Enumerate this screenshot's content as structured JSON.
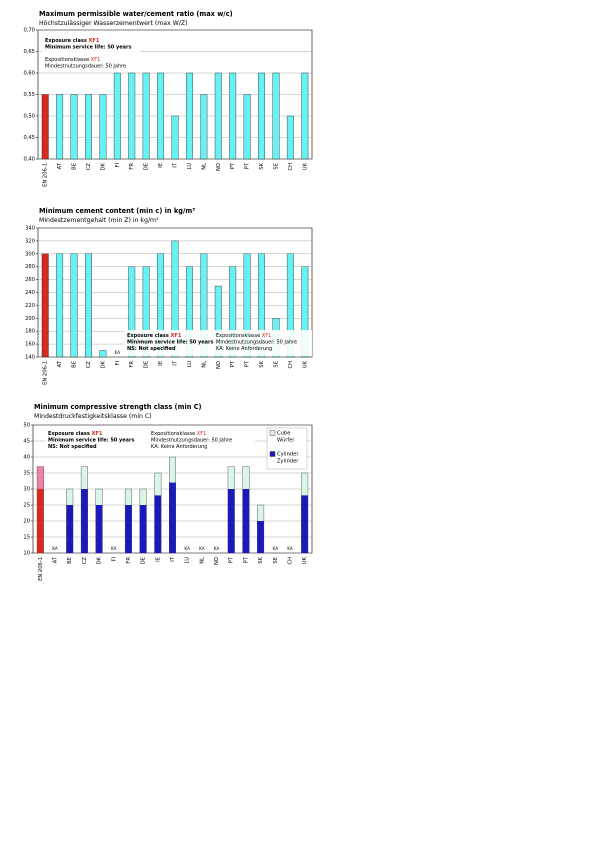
{
  "chart_data": [
    {
      "type": "bar",
      "title": "Maximum permissible water/cement ratio (max w/c)",
      "subtitle": "Höchstzulässiger Wasserzementwert (max W/Z)",
      "categories": [
        "EN 206-1",
        "AT",
        "BE",
        "CZ",
        "DK",
        "FI",
        "FR",
        "DE",
        "IE",
        "IT",
        "LU",
        "NL",
        "NO",
        "PT",
        "PT",
        "SK",
        "SE",
        "CH",
        "UK"
      ],
      "values": [
        0.55,
        0.55,
        0.55,
        0.55,
        0.55,
        0.6,
        0.6,
        0.6,
        0.6,
        0.5,
        0.6,
        0.55,
        0.6,
        0.6,
        0.55,
        0.6,
        0.6,
        0.5,
        0.6
      ],
      "color": "#66f2f2",
      "highlight_color": "#d42a1f",
      "highlight_index": 0,
      "ylim": [
        0.4,
        0.7
      ],
      "yticks": [
        {
          "value": 0.4,
          "label": "0,40"
        },
        {
          "value": 0.45,
          "label": "0,45"
        },
        {
          "value": 0.5,
          "label": "0,50"
        },
        {
          "value": 0.55,
          "label": "0,55"
        },
        {
          "value": 0.6,
          "label": "0,60"
        },
        {
          "value": 0.65,
          "label": "0,65"
        },
        {
          "value": 0.7,
          "label": "0,70"
        }
      ],
      "grid": true,
      "annotations": [
        {
          "lines": [
            {
              "text": "Exposure class",
              "highlight": "XF1"
            },
            {
              "text": "Minimum service life: 50 years"
            }
          ],
          "bold": true
        },
        {
          "lines": [
            {
              "text": "Expositionsklasse",
              "highlight": "XF1"
            },
            {
              "text": "Mindestnutzungsdauer: 50 Jahre"
            }
          ],
          "bold": false
        }
      ]
    },
    {
      "type": "bar",
      "title": "Minimum cement content (min c) in kg/m³",
      "subtitle": "Mindestzementgehalt (min Z) in kg/m³",
      "categories": [
        "EN 206-1",
        "AT",
        "BE",
        "CZ",
        "DK",
        "FI",
        "FR",
        "DE",
        "IE",
        "IT",
        "LU",
        "NL",
        "NO",
        "PT",
        "PT",
        "SK",
        "SE",
        "CH",
        "UK"
      ],
      "values": [
        300,
        300,
        300,
        300,
        150,
        null,
        280,
        280,
        300,
        320,
        280,
        300,
        250,
        280,
        300,
        300,
        200,
        300,
        280
      ],
      "value_labels": [
        null,
        null,
        null,
        null,
        null,
        "KA",
        null,
        null,
        null,
        null,
        null,
        null,
        null,
        null,
        null,
        null,
        null,
        null,
        null
      ],
      "color": "#66f2f2",
      "highlight_color": "#d42a1f",
      "highlight_index": 0,
      "ylim": [
        140,
        340
      ],
      "yticks": [
        140,
        160,
        180,
        200,
        220,
        240,
        260,
        280,
        300,
        320,
        340
      ],
      "grid": true,
      "annotations": [
        {
          "lines": [
            {
              "text": "Exposure class",
              "highlight": "XF1"
            },
            {
              "text": "Minimum service life: 50 years"
            },
            {
              "text": "NS: Not specified"
            }
          ],
          "bold": true
        },
        {
          "lines": [
            {
              "text": "Expositionsklasse",
              "highlight": "XF1"
            },
            {
              "text": "Mindestnutzungsdauer: 50 Jahre"
            },
            {
              "text": "KA: Keine Anforderung"
            }
          ],
          "bold": false
        }
      ]
    },
    {
      "type": "overlap_bar",
      "title": "Minimum compressive strength class (min C)",
      "subtitle": "Mindestdruckfestigkeitsklasse (min C)",
      "categories": [
        "EN 206-1",
        "AT",
        "BE",
        "CZ",
        "DK",
        "FI",
        "FR",
        "DE",
        "IE",
        "IT",
        "LU",
        "NL",
        "NO",
        "PT",
        "PT",
        "SK",
        "SE",
        "CH",
        "UK"
      ],
      "series": [
        {
          "name": "Cube",
          "name_de": "Würfel",
          "color": "#d8f5e6",
          "highlight_color": "#ef7fa6",
          "values": [
            37,
            null,
            30,
            37,
            30,
            null,
            30,
            30,
            35,
            40,
            null,
            null,
            null,
            37,
            37,
            25,
            null,
            null,
            35
          ]
        },
        {
          "name": "Cylinder",
          "name_de": "Zylinder",
          "color": "#1a1ab8",
          "highlight_color": "#d42a1f",
          "values": [
            30,
            null,
            25,
            30,
            25,
            null,
            25,
            25,
            28,
            32,
            null,
            null,
            null,
            30,
            30,
            20,
            null,
            null,
            28
          ]
        }
      ],
      "value_labels": [
        null,
        "KA",
        null,
        null,
        null,
        "KA",
        null,
        null,
        null,
        null,
        "KA",
        "KA",
        "KA",
        null,
        null,
        null,
        "KA",
        "KA",
        null
      ],
      "highlight_index": 0,
      "ylim": [
        10,
        50
      ],
      "yticks": [
        10,
        15,
        20,
        25,
        30,
        35,
        40,
        45,
        50
      ],
      "grid": true,
      "annotations": [
        {
          "lines": [
            {
              "text": "Exposure class",
              "highlight": "XF1"
            },
            {
              "text": "Minimum service life: 50 years"
            },
            {
              "text": "NS: Not specified"
            }
          ],
          "bold": true
        },
        {
          "lines": [
            {
              "text": "Expositionsklasse",
              "highlight": "XF1"
            },
            {
              "text": "Mindestnutzungsdauer: 50 Jahre"
            },
            {
              "text": "KA: Keine Anforderung"
            }
          ],
          "bold": false
        }
      ]
    }
  ]
}
